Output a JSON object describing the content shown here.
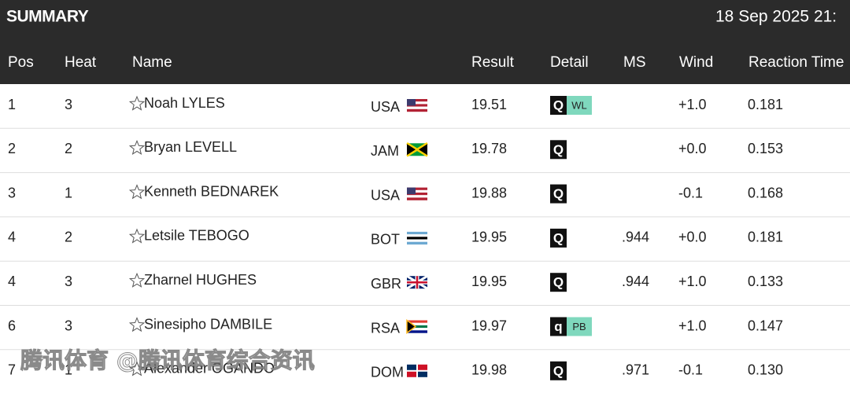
{
  "header": {
    "title": "SUMMARY",
    "datetime": "18 Sep 2025 21:"
  },
  "table": {
    "columns": [
      "Pos",
      "Heat",
      "Name",
      "Result",
      "Detail",
      "MS",
      "Wind",
      "Reaction Time"
    ],
    "rows": [
      {
        "pos": "1",
        "heat": "3",
        "name": "Noah LYLES",
        "country": "USA",
        "result": "19.51",
        "qualifier": "Q",
        "record": "WL",
        "wind": "+1.0",
        "reaction": "0.181"
      },
      {
        "pos": "2",
        "heat": "2",
        "name": "Bryan LEVELL",
        "country": "JAM",
        "result": "19.78",
        "qualifier": "Q",
        "wind": "+0.0",
        "reaction": "0.153"
      },
      {
        "pos": "3",
        "heat": "1",
        "name": "Kenneth BEDNAREK",
        "country": "USA",
        "result": "19.88",
        "qualifier": "Q",
        "wind": "-0.1",
        "reaction": "0.168"
      },
      {
        "pos": "4",
        "heat": "2",
        "name": "Letsile TEBOGO",
        "country": "BOT",
        "result": "19.95",
        "qualifier": "Q",
        "ms": ".944",
        "wind": "+0.0",
        "reaction": "0.181"
      },
      {
        "pos": "4",
        "heat": "3",
        "name": "Zharnel HUGHES",
        "country": "GBR",
        "result": "19.95",
        "qualifier": "Q",
        "ms": ".944",
        "wind": "+1.0",
        "reaction": "0.133"
      },
      {
        "pos": "6",
        "heat": "3",
        "name": "Sinesipho DAMBILE",
        "country": "RSA",
        "result": "19.97",
        "qualifier": "q",
        "record": "PB",
        "wind": "+1.0",
        "reaction": "0.147"
      },
      {
        "pos": "7",
        "heat": "1",
        "name": "Alexander OGANDO",
        "country": "DOM",
        "result": "19.98",
        "qualifier": "Q",
        "ms": ".971",
        "wind": "-0.1",
        "reaction": "0.130"
      }
    ]
  },
  "watermark": "腾讯体育 @腾讯体育综合资讯"
}
